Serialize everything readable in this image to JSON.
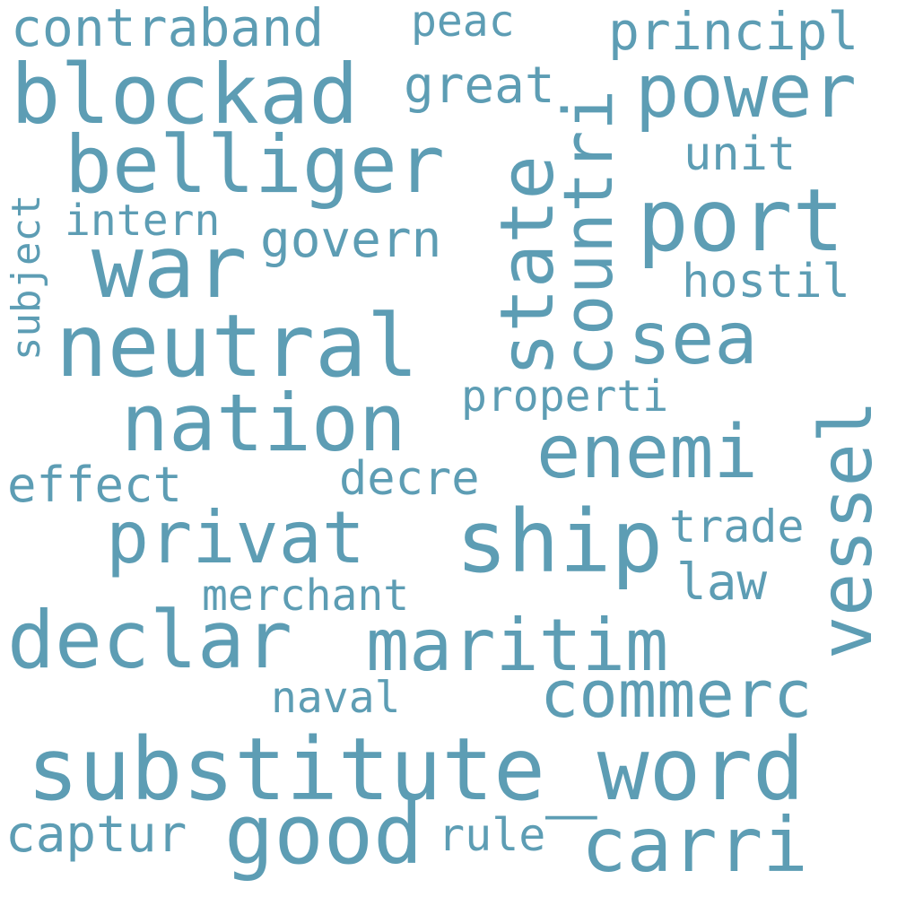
{
  "word_color": "#5d9db4",
  "background": "#ffffff",
  "words": [
    {
      "text": "substitute_word",
      "weight": 100
    },
    {
      "text": "neutral",
      "weight": 88
    },
    {
      "text": "blockad",
      "weight": 84
    },
    {
      "text": "declar",
      "weight": 82
    },
    {
      "text": "maritim",
      "weight": 80
    },
    {
      "text": "belliger",
      "weight": 78
    },
    {
      "text": "war",
      "weight": 78
    },
    {
      "text": "ship",
      "weight": 76
    },
    {
      "text": "state",
      "weight": 76
    },
    {
      "text": "countri",
      "weight": 74
    },
    {
      "text": "port",
      "weight": 74
    },
    {
      "text": "nation",
      "weight": 72
    },
    {
      "text": "vessel",
      "weight": 72
    },
    {
      "text": "power",
      "weight": 70
    },
    {
      "text": "privat",
      "weight": 68
    },
    {
      "text": "enemi",
      "weight": 68
    },
    {
      "text": "good",
      "weight": 66
    },
    {
      "text": "carri",
      "weight": 66
    },
    {
      "text": "commerc",
      "weight": 62
    },
    {
      "text": "sea",
      "weight": 58
    },
    {
      "text": "contraband",
      "weight": 42
    },
    {
      "text": "principl",
      "weight": 42
    },
    {
      "text": "govern",
      "weight": 42
    },
    {
      "text": "merchant",
      "weight": 40
    },
    {
      "text": "captur",
      "weight": 40
    },
    {
      "text": "great",
      "weight": 38
    },
    {
      "text": "properti",
      "weight": 36
    },
    {
      "text": "unit",
      "weight": 36
    },
    {
      "text": "intern",
      "weight": 36
    },
    {
      "text": "hostil",
      "weight": 36
    },
    {
      "text": "effect",
      "weight": 36
    },
    {
      "text": "decre",
      "weight": 34
    },
    {
      "text": "trade",
      "weight": 34
    },
    {
      "text": "law",
      "weight": 34
    },
    {
      "text": "naval",
      "weight": 34
    },
    {
      "text": "rule",
      "weight": 34
    },
    {
      "text": "subject",
      "weight": 32
    },
    {
      "text": "peac",
      "weight": 32
    }
  ]
}
